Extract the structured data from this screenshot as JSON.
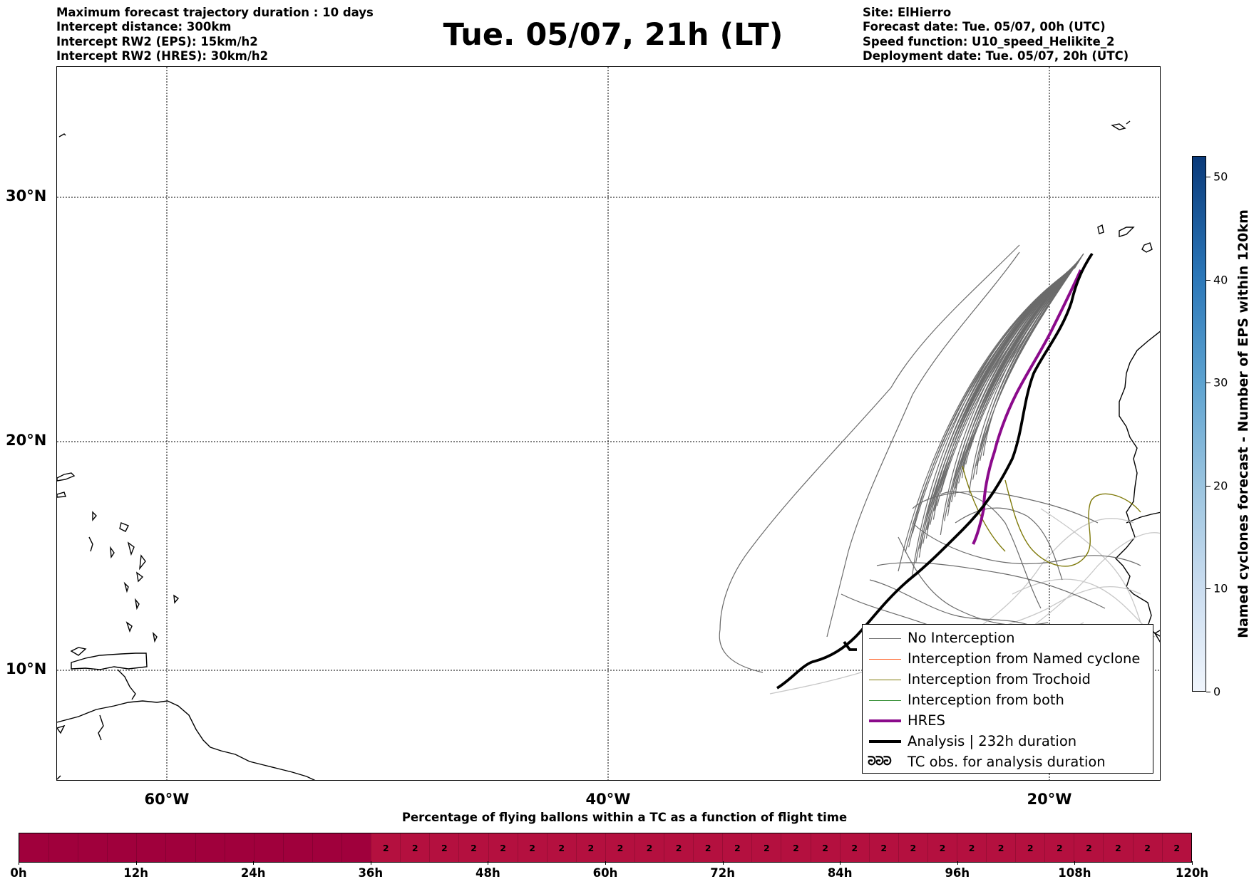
{
  "header": {
    "left_lines": [
      "Maximum forecast trajectory duration : 10 days",
      "Intercept distance: 300km",
      "Intercept RW2 (EPS):  15km/h2",
      "Intercept RW2 (HRES): 30km/h2"
    ],
    "title": "Tue. 05/07, 21h (LT)",
    "right_lines": [
      "Site: ElHierro",
      "Forecast date: Tue. 05/07, 00h (UTC)",
      "Speed function: U10_speed_Helikite_2",
      "Deployment date: Tue. 05/07, 20h (UTC)"
    ]
  },
  "map": {
    "lat_labels": [
      "30°N",
      "20°N",
      "10°N"
    ],
    "lon_labels": [
      "60°W",
      "40°W",
      "20°W"
    ],
    "grid": true,
    "colors": {
      "no_interception": "#6b6b6b",
      "faded_trajectory": "#c8c8c8",
      "named_cyclone": "#ff5a1f",
      "trochoid": "#7f7a0a",
      "both": "#2e8b2e",
      "hres": "#8b0a8b",
      "analysis": "#000000",
      "coastline": "#000000"
    }
  },
  "legend": {
    "placement": "lower-right",
    "items": [
      {
        "label": "No Interception",
        "color": "#6b6b6b",
        "style": "thin"
      },
      {
        "label": "Interception from Named cyclone",
        "color": "#ff5a1f",
        "style": "thin"
      },
      {
        "label": "Interception from Trochoid",
        "color": "#7f7a0a",
        "style": "thin"
      },
      {
        "label": "Interception from both",
        "color": "#2e8b2e",
        "style": "thin"
      },
      {
        "label": "HRES",
        "color": "#8b0a8b",
        "style": "thick"
      },
      {
        "label": "Analysis | 232h duration",
        "color": "#000000",
        "style": "thick"
      },
      {
        "label": "TC obs. for analysis duration",
        "color": "#000000",
        "style": "symbol",
        "symbol": "ᘒᘒᘒ"
      }
    ]
  },
  "colorbar": {
    "title": "Named cyclones forecast - Number of EPS within 120km",
    "ticks": [
      "0",
      "10",
      "20",
      "30",
      "40",
      "50"
    ]
  },
  "timebar": {
    "title": "Percentage of flying ballons within a TC as a function of flight time",
    "ticks": [
      "0h",
      "12h",
      "24h",
      "36h",
      "48h",
      "60h",
      "72h",
      "84h",
      "96h",
      "108h",
      "120h"
    ],
    "cells": [
      "",
      "",
      "",
      "",
      "",
      "",
      "",
      "",
      "",
      "",
      "",
      "",
      "2",
      "2",
      "2",
      "2",
      "2",
      "2",
      "2",
      "2",
      "2",
      "2",
      "2",
      "2",
      "2",
      "2",
      "2",
      "2",
      "2",
      "2",
      "2",
      "2",
      "2",
      "2",
      "2",
      "2",
      "2",
      "2",
      "2",
      "2"
    ],
    "color_empty": "#a0003c",
    "color_filled": "#b4103f"
  }
}
